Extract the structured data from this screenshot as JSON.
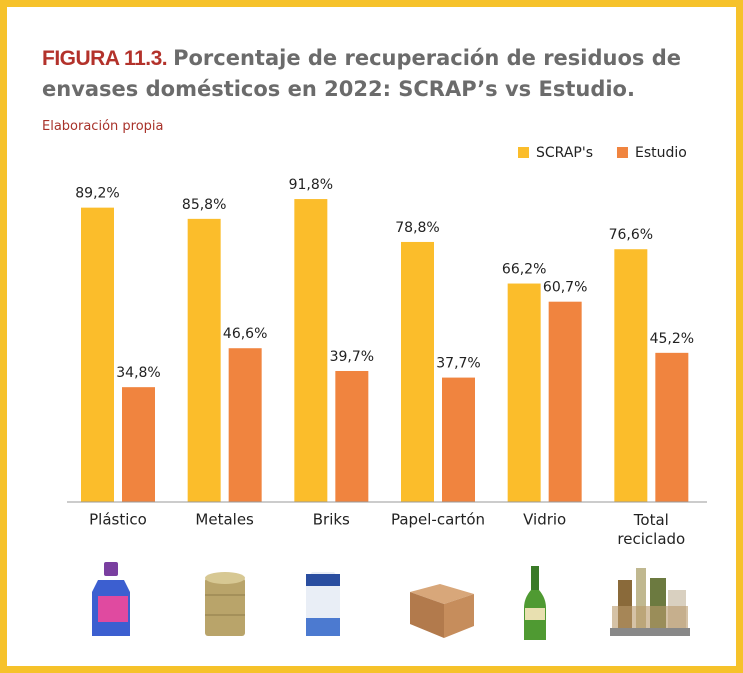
{
  "chart_data": {
    "type": "bar",
    "figure_label": "FIGURA 11.3.",
    "title": "Porcentaje de recuperación de residuos de envases domésticos en 2022: SCRAP’s vs Estudio.",
    "subtitle": "Elaboración propia",
    "categories": [
      "Plástico",
      "Metales",
      "Briks",
      "Papel-cartón",
      "Vidrio",
      "Total reciclado"
    ],
    "series": [
      {
        "name": "SCRAP's",
        "color": "#fbbd2b",
        "values": [
          89.2,
          85.8,
          91.8,
          78.8,
          66.2,
          76.6
        ],
        "value_labels": [
          "89,2%",
          "85,8%",
          "91,8%",
          "78,8%",
          "66,2%",
          "76,6%"
        ]
      },
      {
        "name": "Estudio",
        "color": "#f0843f",
        "values": [
          34.8,
          46.6,
          39.7,
          37.7,
          60.7,
          45.2
        ],
        "value_labels": [
          "34,8%",
          "46,6%",
          "39,7%",
          "37,7%",
          "60,7%",
          "45,2%"
        ]
      }
    ],
    "ylim": [
      0,
      100
    ],
    "legend": "top-right"
  }
}
